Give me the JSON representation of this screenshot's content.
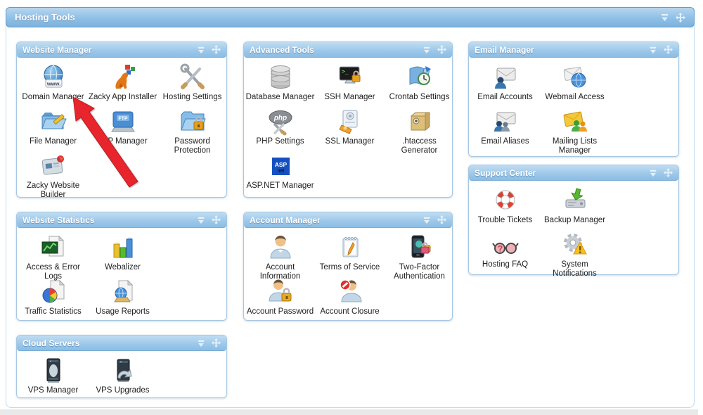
{
  "window": {
    "title": "Hosting Tools"
  },
  "colors": {
    "header_gradient_top": "#b7d6ee",
    "header_gradient_bottom": "#7db1dd",
    "panel_border": "#a6c6e2",
    "header_border": "#5f9bce",
    "header_text": "#ffffff",
    "label_text": "#222222",
    "arrow": "#e8252c",
    "right_edge": "#5e89b4"
  },
  "panel_header_icons": [
    {
      "name": "collapse-icon"
    },
    {
      "name": "move-icon"
    }
  ],
  "panels": [
    {
      "id": "website-manager",
      "title": "Website Manager",
      "columns": 3,
      "items": [
        {
          "label": "Domain Manager",
          "icon": "domain-manager-icon"
        },
        {
          "label": "Zacky App Installer",
          "icon": "zacky-app-installer-icon"
        },
        {
          "label": "Hosting Settings",
          "icon": "hosting-settings-icon"
        },
        {
          "label": "File Manager",
          "icon": "file-manager-icon"
        },
        {
          "label": "FTP Manager",
          "icon": "ftp-manager-icon"
        },
        {
          "label": "Password Protection",
          "icon": "password-protection-icon"
        },
        {
          "label": "Zacky Website Builder",
          "icon": "zacky-website-builder-icon"
        }
      ]
    },
    {
      "id": "advanced-tools",
      "title": "Advanced Tools",
      "columns": 3,
      "items": [
        {
          "label": "Database Manager",
          "icon": "database-manager-icon"
        },
        {
          "label": "SSH Manager",
          "icon": "ssh-manager-icon"
        },
        {
          "label": "Crontab Settings",
          "icon": "crontab-settings-icon"
        },
        {
          "label": "PHP Settings",
          "icon": "php-settings-icon"
        },
        {
          "label": "SSL Manager",
          "icon": "ssl-manager-icon"
        },
        {
          "label": ".htaccess Generator",
          "icon": "htaccess-generator-icon"
        },
        {
          "label": "ASP.NET Manager",
          "icon": "aspnet-manager-icon"
        }
      ]
    },
    {
      "id": "email-manager",
      "title": "Email Manager",
      "columns": 2,
      "items": [
        {
          "label": "Email Accounts",
          "icon": "email-accounts-icon"
        },
        {
          "label": "Webmail Access",
          "icon": "webmail-access-icon"
        },
        {
          "label": "Email Aliases",
          "icon": "email-aliases-icon"
        },
        {
          "label": "Mailing Lists Manager",
          "icon": "mailing-lists-manager-icon"
        }
      ]
    },
    {
      "id": "support-center",
      "title": "Support Center",
      "columns": 2,
      "items": [
        {
          "label": "Trouble Tickets",
          "icon": "trouble-tickets-icon"
        },
        {
          "label": "Backup Manager",
          "icon": "backup-manager-icon"
        },
        {
          "label": "Hosting FAQ",
          "icon": "hosting-faq-icon"
        },
        {
          "label": "System Notifications",
          "icon": "system-notifications-icon"
        }
      ]
    },
    {
      "id": "website-statistics",
      "title": "Website Statistics",
      "columns": 2,
      "items": [
        {
          "label": "Access & Error Logs",
          "icon": "access-error-logs-icon"
        },
        {
          "label": "Webalizer",
          "icon": "webalizer-icon"
        },
        {
          "label": "Traffic Statistics",
          "icon": "traffic-statistics-icon"
        },
        {
          "label": "Usage Reports",
          "icon": "usage-reports-icon"
        }
      ]
    },
    {
      "id": "account-manager",
      "title": "Account Manager",
      "columns": 3,
      "items": [
        {
          "label": "Account Information",
          "icon": "account-information-icon"
        },
        {
          "label": "Terms of Service",
          "icon": "terms-of-service-icon"
        },
        {
          "label": "Two-Factor Authentication",
          "icon": "two-factor-authentication-icon"
        },
        {
          "label": "Account Password",
          "icon": "account-password-icon"
        },
        {
          "label": "Account Closure",
          "icon": "account-closure-icon"
        }
      ]
    },
    {
      "id": "cloud-servers",
      "title": "Cloud Servers",
      "columns": 2,
      "items": [
        {
          "label": "VPS Manager",
          "icon": "vps-manager-icon"
        },
        {
          "label": "VPS Upgrades",
          "icon": "vps-upgrades-icon"
        }
      ]
    }
  ],
  "annotation": {
    "type": "arrow",
    "points_to": "Domain Manager"
  }
}
